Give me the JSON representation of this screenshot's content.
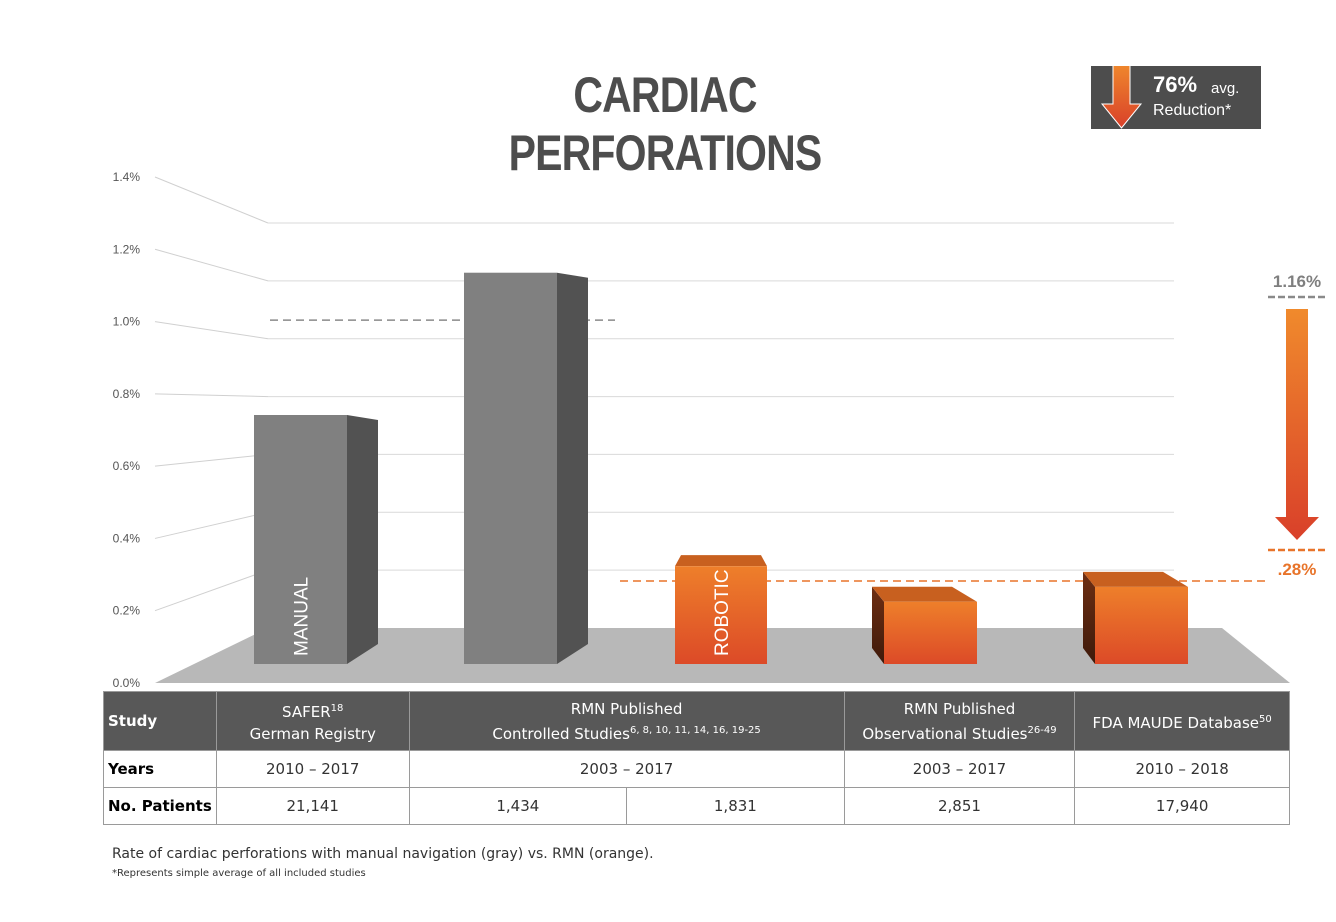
{
  "chart_data": {
    "type": "bar",
    "title": "CARDIAC PERFORATIONS",
    "categories": [
      "SAFER German Registry",
      "RMN Published Controlled Studies (manual)",
      "RMN Published Controlled Studies (robotic)",
      "RMN Published Observational Studies",
      "FDA MAUDE Database"
    ],
    "values": [
      0.84,
      1.32,
      0.33,
      0.21,
      0.26
    ],
    "bar_groups": [
      "manual",
      "manual",
      "robotic",
      "robotic",
      "robotic"
    ],
    "bar_labels": [
      "MANUAL",
      "",
      "ROBOTIC",
      "",
      ""
    ],
    "y_ticks": [
      "0.0%",
      "0.2%",
      "0.4%",
      "0.6%",
      "0.8%",
      "1.0%",
      "1.2%",
      "1.4%"
    ],
    "ylim": [
      0,
      1.4
    ],
    "averages": {
      "manual": 1.16,
      "robotic": 0.28
    },
    "avg_labels": {
      "manual": "1.16%",
      "robotic": ".28%"
    },
    "reduction": {
      "value": "76%",
      "avg": "avg.",
      "label": "Reduction*"
    },
    "colors": {
      "manual": "#808080",
      "robotic": "#e8742a",
      "accent": "#e8742a",
      "gray_text": "#7f7f7f"
    }
  },
  "table": {
    "study_label": "Study",
    "years_label": "Years",
    "patients_label": "No. Patients",
    "studies": [
      {
        "line1": "SAFER",
        "sup1": "18",
        "line2": "German Registry",
        "sup2": ""
      },
      {
        "line1": "RMN Published",
        "sup1": "",
        "line2": "Controlled Studies",
        "sup2": "6, 8, 10, 11, 14, 16, 19-25"
      },
      {
        "line1": "RMN Published",
        "sup1": "",
        "line2": "Observational Studies",
        "sup2": "26-49"
      },
      {
        "line1": "FDA MAUDE Database",
        "sup1": "50",
        "line2": "",
        "sup2": ""
      }
    ],
    "years": [
      "2010 – 2017",
      "2003 – 2017",
      "2003 – 2017",
      "2010 – 2018"
    ],
    "patients": [
      "21,141",
      "1,434",
      "1,831",
      "2,851",
      "17,940"
    ]
  },
  "caption": "Rate of cardiac perforations with manual navigation (gray) vs. RMN (orange).",
  "footnote": "*Represents simple average of all included studies"
}
